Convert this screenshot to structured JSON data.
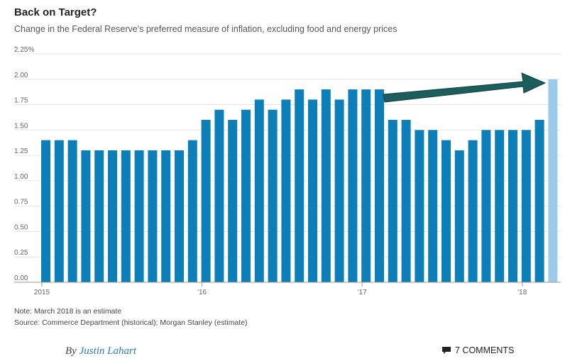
{
  "chart_data": {
    "type": "bar",
    "title": "Back on Target?",
    "subtitle": "Change in the Federal Reserve's preferred measure of inflation, excluding food and energy prices",
    "y_ticks": [
      {
        "value": 0,
        "label": "0.00"
      },
      {
        "value": 0.25,
        "label": "0.25"
      },
      {
        "value": 0.5,
        "label": "0.50"
      },
      {
        "value": 0.75,
        "label": "0.75"
      },
      {
        "value": 1.0,
        "label": "1.00"
      },
      {
        "value": 1.25,
        "label": "1.25"
      },
      {
        "value": 1.5,
        "label": "1.50"
      },
      {
        "value": 1.75,
        "label": "1.75"
      },
      {
        "value": 2.0,
        "label": "2.00"
      },
      {
        "value": 2.25,
        "label": "2.25%"
      }
    ],
    "ylim": [
      0,
      2.25
    ],
    "x_ticks": [
      {
        "index": 0,
        "label": "2015"
      },
      {
        "index": 12,
        "label": "'16"
      },
      {
        "index": 24,
        "label": "'17"
      },
      {
        "index": 36,
        "label": "'18"
      }
    ],
    "values": [
      1.4,
      1.4,
      1.4,
      1.3,
      1.3,
      1.3,
      1.3,
      1.3,
      1.3,
      1.3,
      1.3,
      1.4,
      1.6,
      1.7,
      1.6,
      1.7,
      1.8,
      1.7,
      1.8,
      1.9,
      1.8,
      1.9,
      1.8,
      1.9,
      1.9,
      1.9,
      1.6,
      1.6,
      1.5,
      1.5,
      1.4,
      1.3,
      1.4,
      1.5,
      1.5,
      1.5,
      1.5,
      1.6,
      2.0
    ],
    "estimate_index": 38,
    "colors": {
      "bar": "#0c7fb8",
      "estimate_bar": "#9ccaea",
      "arrow": "#1b5e5d",
      "grid": "#e6e6e6",
      "axis": "#999999"
    },
    "grid": true,
    "annotation": "arrow pointing to the estimate bar"
  },
  "notes": {
    "note": "Note: March 2018 is an estimate",
    "source": "Source: Commerce Department (historical); Morgan Stanley (estimate)"
  },
  "byline": {
    "prefix": "By ",
    "author": "Justin Lahart"
  },
  "comments": {
    "label": "7 COMMENTS",
    "icon": "comment-bubble-icon"
  }
}
